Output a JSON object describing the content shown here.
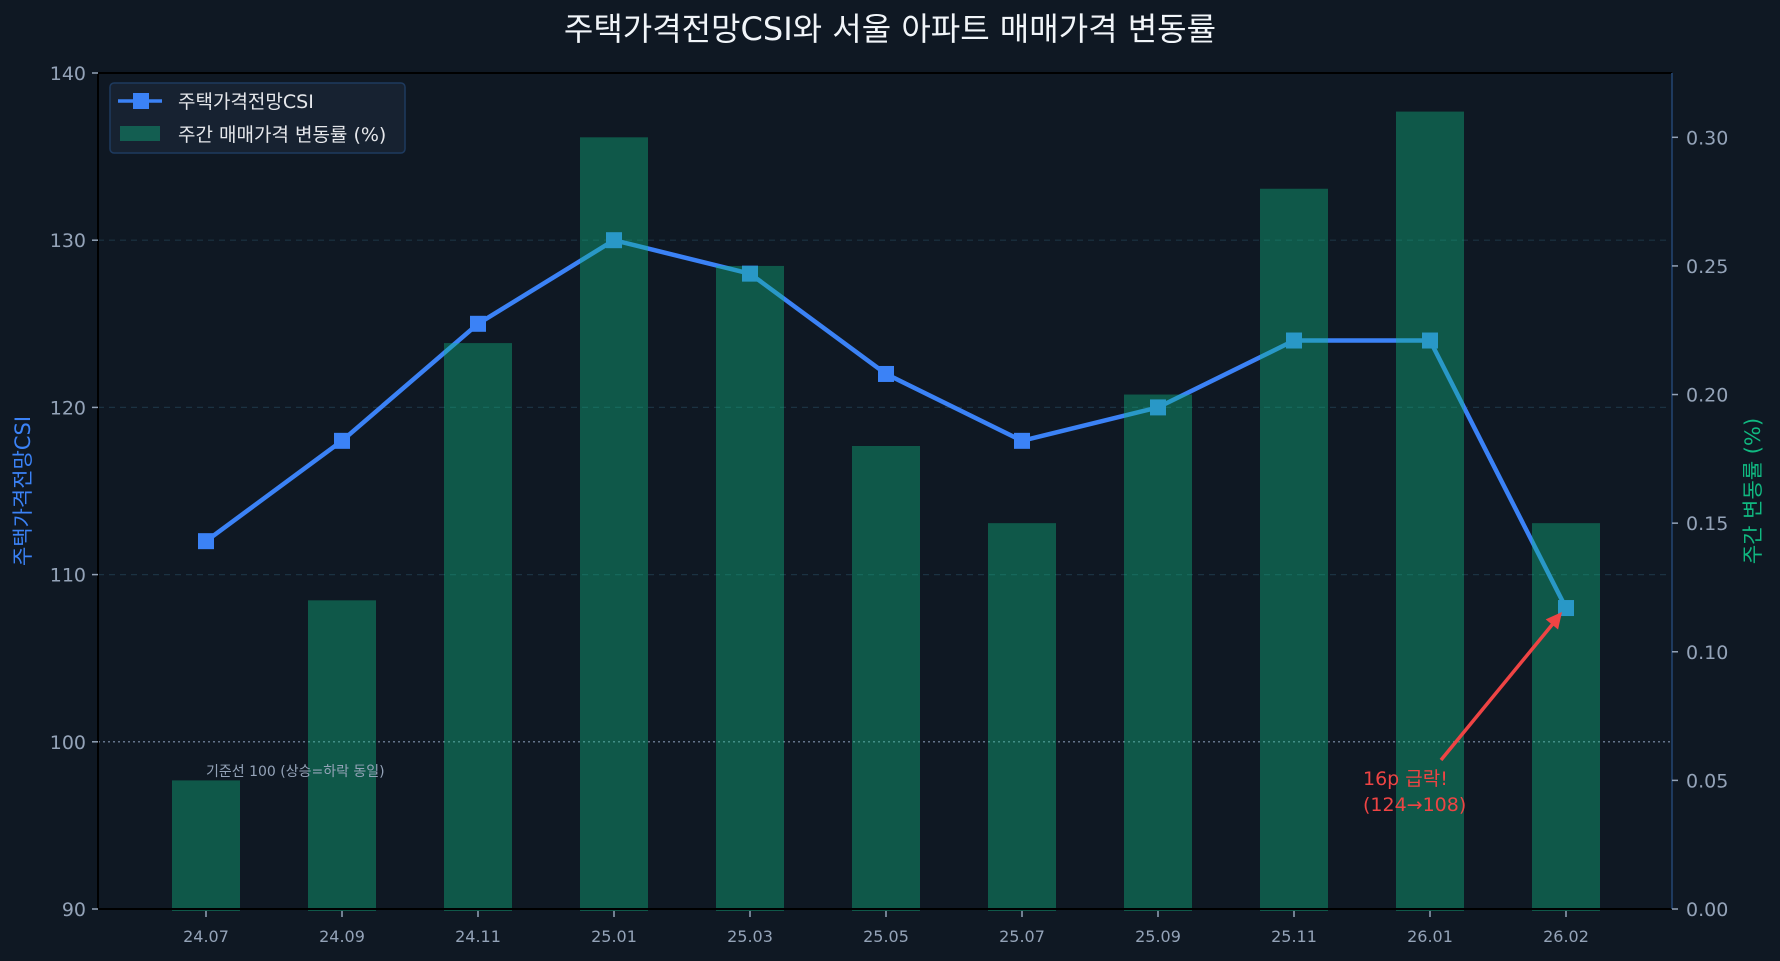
{
  "chart_data": {
    "type": "bar+line",
    "title": "주택가격전망CSI와 서울 아파트 매매가격 변동률",
    "categories": [
      "24.07",
      "24.09",
      "24.11",
      "25.01",
      "25.03",
      "25.05",
      "25.07",
      "25.09",
      "25.11",
      "26.01",
      "26.02"
    ],
    "series": [
      {
        "name": "주택가격전망CSI",
        "type": "line",
        "axis": "left",
        "marker": "square",
        "color": "#3b82f6",
        "values": [
          112,
          118,
          125,
          130,
          128,
          122,
          118,
          120,
          124,
          124,
          108
        ]
      },
      {
        "name": "주간 매매가격 변동률 (%)",
        "type": "bar",
        "axis": "right",
        "color": "#10b981",
        "values": [
          0.05,
          0.12,
          0.22,
          0.3,
          0.25,
          0.18,
          0.15,
          0.2,
          0.28,
          0.31,
          0.15
        ]
      }
    ],
    "xlabel": "",
    "ylabel": "주택가격전망CSI",
    "ylabel_right": "주간 변동률 (%)",
    "ylim": [
      90,
      140
    ],
    "ylim_right": [
      0,
      0.325
    ],
    "yticks": [
      "90",
      "100",
      "110",
      "120",
      "130",
      "140"
    ],
    "yticks_right": [
      "0.00",
      "0.05",
      "0.10",
      "0.15",
      "0.20",
      "0.25",
      "0.30"
    ],
    "grid": true,
    "legend_position": "upper left",
    "reference_line": {
      "value": 100,
      "label": "기준선 100 (상승=하락 동일)"
    },
    "annotations": [
      {
        "text_line1": "16p 급락!",
        "text_line2": "(124→108)",
        "target_category": "26.02",
        "target_value": 108,
        "color": "#ef4444"
      }
    ]
  },
  "colors": {
    "background": "#0f1823",
    "line": "#3b82f6",
    "bar": "#10b981",
    "annotation": "#ef4444",
    "grid": "#1e3a4a",
    "right_spine": "#1e3a5f"
  }
}
